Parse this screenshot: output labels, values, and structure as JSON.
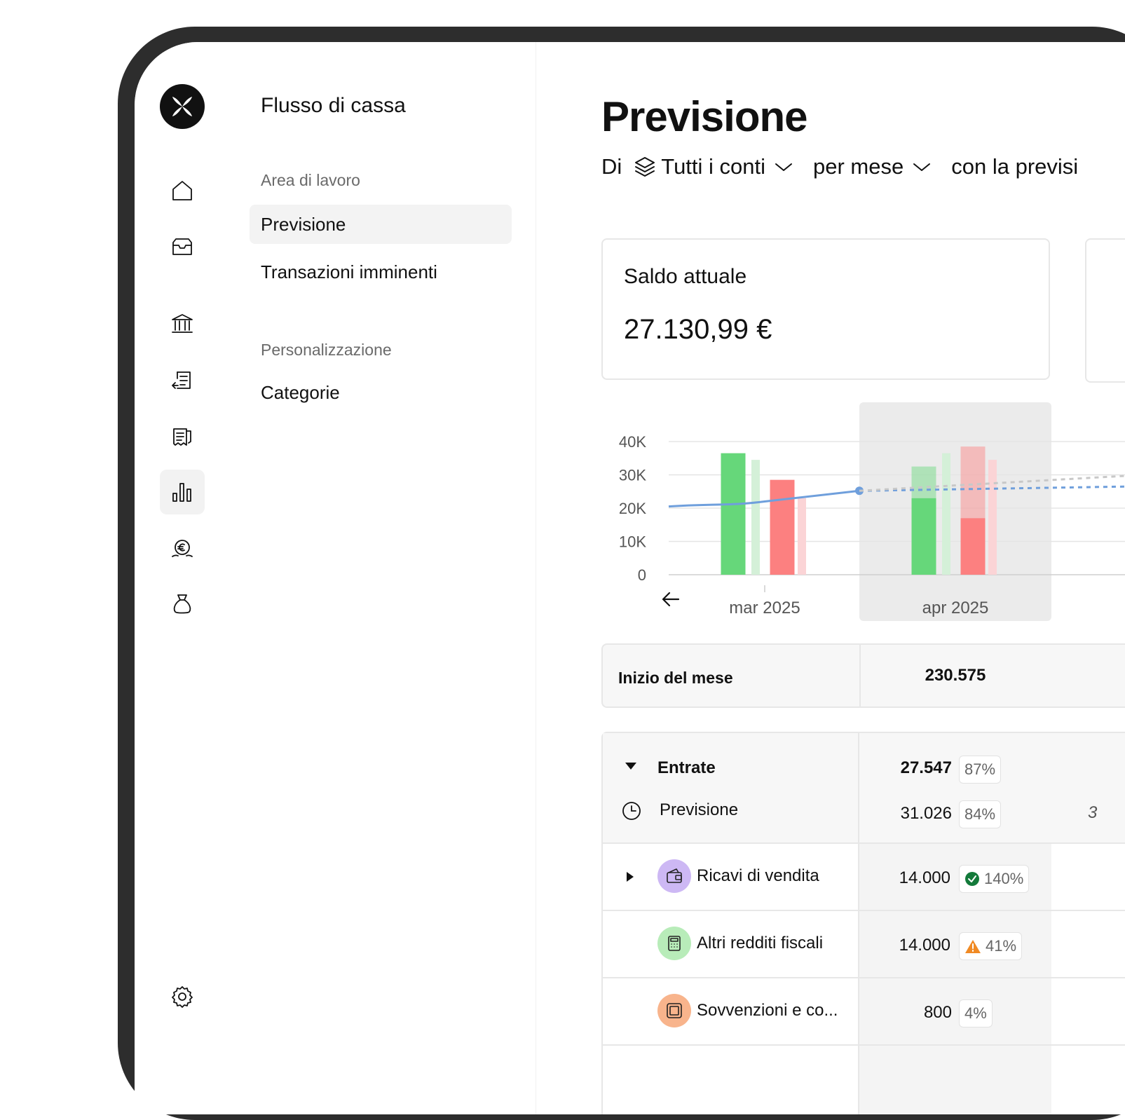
{
  "sidebar": {
    "section_title": "Flusso di cassa",
    "groups": [
      {
        "label": "Area di lavoro",
        "items": [
          {
            "label": "Previsione"
          },
          {
            "label": "Transazioni imminenti"
          }
        ]
      },
      {
        "label": "Personalizzazione",
        "items": [
          {
            "label": "Categorie"
          }
        ]
      }
    ]
  },
  "rail_icons": [
    "logo-icon",
    "home-icon",
    "inbox-icon",
    "bank-icon",
    "transfers-icon",
    "invoices-icon",
    "chart-icon",
    "euro-coin-icon",
    "money-bag-icon",
    "settings-icon"
  ],
  "page": {
    "title": "Previsione",
    "filters": {
      "prefix": "Di",
      "accounts": "Tutti i conti",
      "period": "per mese",
      "forecast": "con la previsi"
    }
  },
  "balance_card": {
    "label": "Saldo attuale",
    "value": "27.130,99 €"
  },
  "chart_data": {
    "type": "bar",
    "categories": [
      "mar 2025",
      "apr 2025"
    ],
    "y_ticks": [
      "40K",
      "30K",
      "20K",
      "10K",
      "0"
    ],
    "ylim": [
      0,
      40000
    ],
    "highlighted_category": "apr 2025",
    "series": [
      {
        "name": "",
        "values": [
          36500,
          23000
        ],
        "color": "#66d77a"
      },
      {
        "name": "",
        "values": [
          34500,
          36500
        ],
        "color": "#d4f0d8"
      },
      {
        "name": "",
        "values": [
          28500,
          17000
        ],
        "color": "#fc8080"
      },
      {
        "name": "",
        "values": [
          23000,
          34500
        ],
        "color": "#fbd4d6"
      }
    ],
    "forecast_overlay": [
      {
        "category": "apr 2025",
        "series_index": 0,
        "value": 32500
      },
      {
        "category": "apr 2025",
        "series_index": 2,
        "value": 38500
      }
    ],
    "balance_line": [
      {
        "x": "mar 2025",
        "y": 20500
      },
      {
        "x": "apr 2025",
        "y": 25200
      }
    ],
    "balance_line_forecast_end": 27000,
    "grey_forecast_end": 31500,
    "line_color": "#6f9fdc",
    "grid": true,
    "nav_icon": "arrow-left-icon"
  },
  "month_start": {
    "label": "Inizio del mese",
    "value": "230.575"
  },
  "table": {
    "header": {
      "label": "Entrate",
      "value": "27.547",
      "percent": "87%",
      "forecast_label": "Previsione",
      "forecast_value": "31.026",
      "forecast_percent": "84%",
      "next_col_partial": "3"
    },
    "rows": [
      {
        "label": "Ricavi di vendita",
        "value": "14.000",
        "percent": "140%",
        "status": "check",
        "icon": "wallet-icon",
        "icon_bg": "#cdb8f4"
      },
      {
        "label": "Altri redditi fiscali",
        "value": "14.000",
        "percent": "41%",
        "status": "warning",
        "icon": "calculator-icon",
        "icon_bg": "#b8ecb9"
      },
      {
        "label": "Sovvenzioni e co...",
        "value": "800",
        "percent": "4%",
        "status": "none",
        "icon": "safe-icon",
        "icon_bg": "#f8b48c"
      }
    ]
  }
}
